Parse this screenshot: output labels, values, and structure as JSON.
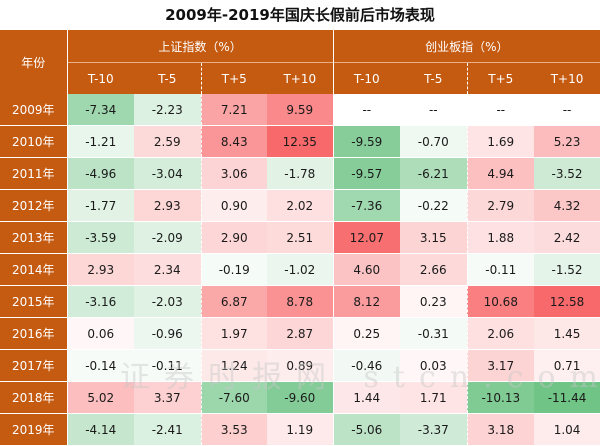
{
  "title": "2009年-2019年国庆长假前后市场表现",
  "header": {
    "year_label": "年份",
    "group1": "上证指数（%）",
    "group2": "创业板指（%）",
    "sub": [
      "T-10",
      "T-5",
      "T+5",
      "T+10",
      "T-10",
      "T-5",
      "T+5",
      "T+10"
    ]
  },
  "rows": [
    {
      "year": "2009年",
      "values": [
        "-7.34",
        "-2.23",
        "7.21",
        "9.59",
        "--",
        "--",
        "--",
        "--"
      ]
    },
    {
      "year": "2010年",
      "values": [
        "-1.21",
        "2.59",
        "8.43",
        "12.35",
        "-9.59",
        "-0.70",
        "1.69",
        "5.23"
      ]
    },
    {
      "year": "2011年",
      "values": [
        "-4.96",
        "-3.04",
        "3.06",
        "-1.78",
        "-9.57",
        "-6.21",
        "4.94",
        "-3.52"
      ]
    },
    {
      "year": "2012年",
      "values": [
        "-1.77",
        "2.93",
        "0.90",
        "2.02",
        "-7.36",
        "-0.22",
        "2.79",
        "4.32"
      ]
    },
    {
      "year": "2013年",
      "values": [
        "-3.59",
        "-2.09",
        "2.90",
        "2.51",
        "12.07",
        "3.15",
        "1.88",
        "2.42"
      ]
    },
    {
      "year": "2014年",
      "values": [
        "2.93",
        "2.34",
        "-0.19",
        "-1.02",
        "4.60",
        "2.66",
        "-0.11",
        "-1.52"
      ]
    },
    {
      "year": "2015年",
      "values": [
        "-3.16",
        "-2.03",
        "6.87",
        "8.78",
        "8.12",
        "0.23",
        "10.68",
        "12.58"
      ]
    },
    {
      "year": "2016年",
      "values": [
        "0.06",
        "-0.96",
        "1.97",
        "2.87",
        "0.25",
        "-0.31",
        "2.06",
        "1.45"
      ]
    },
    {
      "year": "2017年",
      "values": [
        "-0.14",
        "-0.11",
        "1.24",
        "0.89",
        "-0.46",
        "0.03",
        "3.17",
        "0.71"
      ]
    },
    {
      "year": "2018年",
      "values": [
        "5.02",
        "3.37",
        "-7.60",
        "-9.60",
        "1.44",
        "1.71",
        "-10.13",
        "-11.44"
      ]
    },
    {
      "year": "2019年",
      "values": [
        "-4.14",
        "-2.41",
        "3.53",
        "1.19",
        "-5.06",
        "-3.37",
        "3.18",
        "1.04"
      ]
    }
  ],
  "watermark": "证券时报网 stcn.com",
  "colors": {
    "header": "#c55a11",
    "positive": "#f8696b",
    "negative": "#63be7b",
    "neutral": "#ffffff"
  }
}
